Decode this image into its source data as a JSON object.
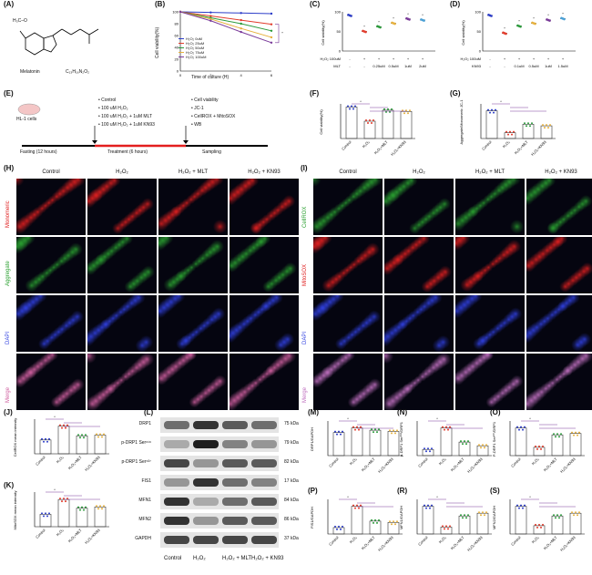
{
  "panels": {
    "A": "(A)",
    "B": "(B)",
    "C": "(C)",
    "D": "(D)",
    "E": "(E)",
    "F": "(F)",
    "G": "(G)",
    "H": "(H)",
    "I": "(I)",
    "J": "(J)",
    "K": "(K)",
    "L": "(L)",
    "M": "(M)",
    "N": "(N)",
    "O": "(O)",
    "P": "(P)",
    "R": "(R)",
    "S": "(S)"
  },
  "molecule": {
    "name": "Melatonin",
    "formula": "C₁₃H₁₆N₂O₂",
    "group": "H₃C–O"
  },
  "panelB": {
    "ylabel": "Cell viability(%)",
    "xlabel": "Time of culture (H)",
    "xticks": [
      "0",
      "2",
      "4",
      "6"
    ],
    "yticks": [
      "100",
      "80",
      "60",
      "40",
      "20",
      "0"
    ],
    "legend": [
      "H₂O₂ 0uM",
      "H₂O₂ 25uM",
      "H₂O₂ 50uM",
      "H₂O₂ 75uM",
      "H₂O₂ 100uM"
    ],
    "colors": [
      "#2b3cc8",
      "#e23c2c",
      "#2a9a3a",
      "#e6b03c",
      "#7a3b9a"
    ],
    "x": [
      0,
      2,
      4,
      6
    ],
    "series": [
      [
        100,
        99,
        98,
        97
      ],
      [
        100,
        93,
        86,
        79
      ],
      [
        100,
        90,
        80,
        68
      ],
      [
        100,
        88,
        72,
        57
      ],
      [
        100,
        85,
        66,
        48
      ]
    ]
  },
  "panelC": {
    "ylabel": "Cell viability(%)",
    "rows": [
      {
        "label": "H₂O₂ 100uM",
        "vals": [
          "-",
          "+",
          "+",
          "+",
          "+",
          "+"
        ]
      },
      {
        "label": "MLT",
        "vals": [
          "-",
          "-",
          "0.25uM",
          "0.5uM",
          "1uM",
          "2uM"
        ]
      }
    ],
    "values": [
      100,
      55,
      68,
      78,
      90,
      87
    ]
  },
  "panelD": {
    "ylabel": "Cell viability(%)",
    "rows": [
      {
        "label": "H₂O₂ 100uM",
        "vals": [
          "-",
          "+",
          "+",
          "+",
          "+",
          "+"
        ]
      },
      {
        "label": "KN93",
        "vals": [
          "-",
          "-",
          "0.1uM",
          "0.5uM",
          "1uM",
          "1.5uM"
        ]
      }
    ],
    "values": [
      100,
      50,
      70,
      78,
      87,
      91
    ]
  },
  "panelE": {
    "cells": "HL-1 cells",
    "treatments": [
      "• Control",
      "• 100 uM H₂O₂",
      "• 100 uM H₂O₂ + 1uM MLT",
      "• 100 uM H₂O₂ + 1uM KN93"
    ],
    "assays": [
      "• Cell viability",
      "• JC-1",
      "• CellROX + MitoSOX",
      "• WB"
    ],
    "phases": [
      "Fasting (12 hours)",
      "Treatment (6 hours)",
      "Sampling"
    ]
  },
  "panelF": {
    "ylabel": "Cell viability(%)",
    "categories": [
      "Control",
      "H₂O₂",
      "H₂O₂+MLT",
      "H₂O₂+KN93"
    ],
    "values": [
      100,
      55,
      90,
      86
    ]
  },
  "panelG": {
    "ylabel": "Aggregate/Monomeric JC-1",
    "categories": [
      "Control",
      "H₂O₂",
      "H₂O₂+MLT",
      "H₂O₂+KN93"
    ],
    "values": [
      1.2,
      0.25,
      0.62,
      0.55
    ]
  },
  "panelH": {
    "cols": [
      "Control",
      "H₂O₂",
      "H₂O₂ + MLT",
      "H₂O₂ + KN93"
    ],
    "rows": [
      "Monomeric",
      "Aggregate",
      "DAPI",
      "Merge"
    ]
  },
  "panelI": {
    "cols": [
      "Control",
      "H₂O₂",
      "H₂O₂ + MLT",
      "H₂O₂ + KN93"
    ],
    "rows": [
      "CellROX",
      "MitoSOX",
      "DAPI",
      "Merge"
    ]
  },
  "panelJ": {
    "ylabel": "CellROX mean intensity",
    "categories": [
      "Control",
      "H₂O₂",
      "H₂O₂+MLT",
      "H₂O₂+KN93"
    ],
    "values": [
      1.0,
      2.0,
      1.3,
      1.35
    ]
  },
  "panelK": {
    "ylabel": "MitoSOX mean intensity",
    "categories": [
      "Control",
      "H₂O₂",
      "H₂O₂+MLT",
      "H₂O₂+KN93"
    ],
    "values": [
      1.0,
      2.2,
      1.5,
      1.6
    ]
  },
  "panelL": {
    "proteins": [
      "DRP1",
      "p-DRP1 Ser⁶¹⁶",
      "p-DRP1 Ser⁶³⁷",
      "FIS1",
      "MFN1",
      "MFN2",
      "GAPDH"
    ],
    "weights": [
      "75 kDa",
      "79 kDa",
      "82 kDa",
      "17 kDa",
      "84 kDa",
      "86 kDa",
      "37 kDa"
    ],
    "lanes": [
      "Control",
      "H₂O₂",
      "H₂O₂ + MLT",
      "H₂O₂ + KN93"
    ]
  },
  "smallBars": [
    {
      "id": "M",
      "ylabel": "DRP1/GAPDH",
      "values": [
        1.0,
        1.2,
        1.1,
        1.05
      ]
    },
    {
      "id": "N",
      "ylabel": "p-DRP1 Ser⁶¹⁶/DRP1",
      "values": [
        1.0,
        4.5,
        2.2,
        1.6
      ]
    },
    {
      "id": "O",
      "ylabel": "P-DRP1 Ser⁶³⁷/DRP1",
      "values": [
        1.0,
        0.3,
        0.75,
        0.8
      ]
    },
    {
      "id": "P",
      "ylabel": "FIS1/GAPDH",
      "values": [
        1.0,
        4.3,
        2.0,
        1.8
      ]
    },
    {
      "id": "R",
      "ylabel": "MFN1/GAPDH",
      "values": [
        1.0,
        0.25,
        0.65,
        0.75
      ]
    },
    {
      "id": "S",
      "ylabel": "MFN2/GAPDH",
      "values": [
        1.0,
        0.3,
        0.65,
        0.75
      ]
    }
  ],
  "groupLabels": [
    "Control",
    "H₂O₂",
    "H₂O₂+MLT",
    "H₂O₂+KN93"
  ],
  "star": "*"
}
